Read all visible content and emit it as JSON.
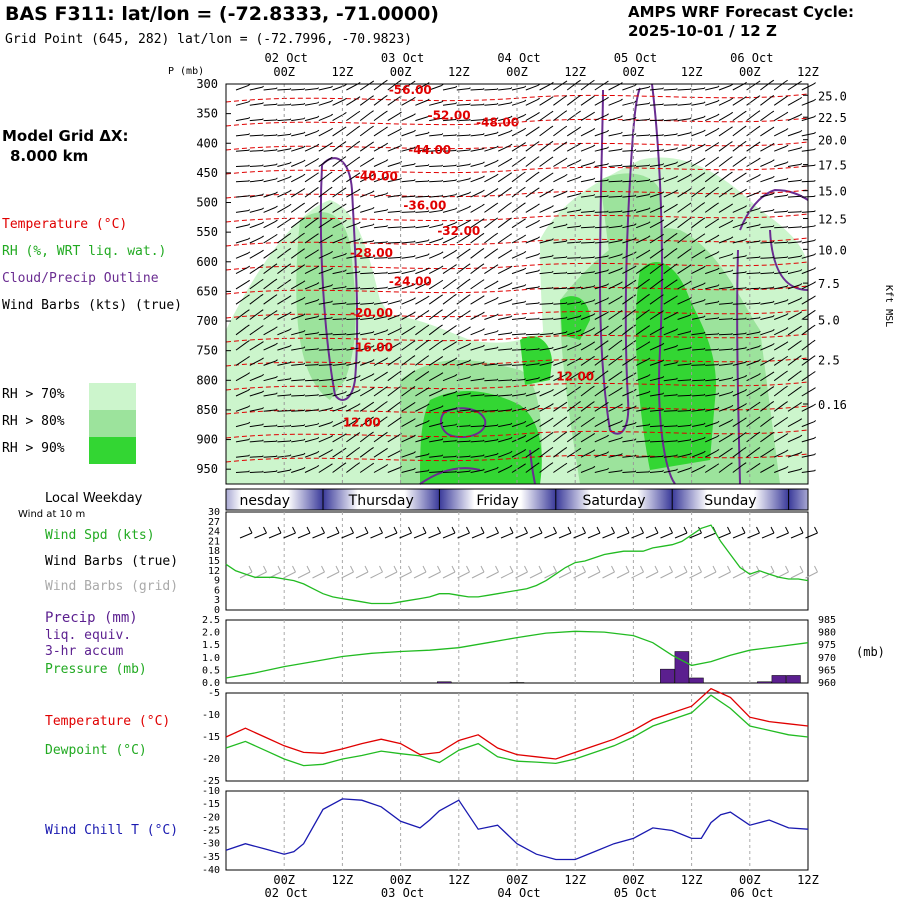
{
  "header": {
    "title": "BAS F311:  lat/lon = (-72.8333, -71.0000)",
    "grid_point": "Grid Point (645, 282) lat/lon = (-72.7996, -70.9823)",
    "forecast_line1": "AMPS WRF Forecast Cycle:",
    "forecast_line2": "2025-10-01 / 12  Z"
  },
  "left_panel": {
    "model_grid_label": "Model Grid ΔX:",
    "model_grid_value": "8.000 km",
    "legend_temperature": "Temperature (°C)",
    "legend_rh": "RH (%, WRT liq. wat.)",
    "legend_cloud": "Cloud/Precip Outline",
    "legend_wind": "Wind Barbs (kts) (true)",
    "rh70": "RH > 70%",
    "rh80": "RH > 80%",
    "rh90": "RH > 90%",
    "local_weekday": "Local Weekday",
    "wind_10m": "Wind at 10 m",
    "wind_spd": "Wind Spd (kts)",
    "wind_true": "Wind Barbs (true)",
    "wind_grid": "Wind Barbs (grid)",
    "precip1": "Precip (mm)",
    "precip2": "liq. equiv.",
    "precip3": "3-hr accum",
    "pressure": "Pressure (mb)",
    "temperature": "Temperature (°C)",
    "dewpoint": "Dewpoint (°C)",
    "windchill": "Wind Chill T (°C)"
  },
  "colors": {
    "rh70": "#ccf5cc",
    "rh80": "#9ce39c",
    "rh90": "#33d633",
    "temp": "#e00000",
    "cloud": "#6a2c91",
    "green": "#22bb22",
    "precip": "#5b1f8f",
    "chill": "#1a1ab0",
    "grey": "#aaaaaa"
  },
  "chart_data": [
    {
      "type": "heatmap",
      "title": "Vertical cross-section",
      "ylabel": "P (mb)",
      "y_ticks": [
        "300",
        "350",
        "400",
        "450",
        "500",
        "550",
        "600",
        "650",
        "700",
        "750",
        "800",
        "850",
        "900",
        "950"
      ],
      "right_label": "Kft MSL",
      "right_ticks": [
        "25.0",
        "22.5",
        "20.0",
        "17.5",
        "15.0",
        "12.5",
        "10.0",
        "7.5",
        "5.0",
        "2.5",
        "0.16"
      ],
      "right_tick_pressures": [
        319,
        356,
        394,
        436,
        480,
        527,
        579,
        636,
        697,
        765,
        840,
        928,
        979
      ],
      "top_dates": [
        "02 Oct",
        "03 Oct",
        "04 Oct",
        "05 Oct",
        "06 Oct"
      ],
      "x_hours": [
        "00Z",
        "12Z",
        "00Z",
        "12Z",
        "00Z",
        "12Z",
        "00Z",
        "12Z",
        "00Z",
        "12Z"
      ],
      "x_hour_offsets": [
        12,
        24,
        36,
        48,
        60,
        72,
        84,
        96,
        108,
        120
      ],
      "x_range": [
        0,
        120
      ],
      "temperature_labels": [
        {
          "v": "-56.00",
          "h": 38,
          "p": 317
        },
        {
          "v": "-52.00",
          "h": 46,
          "p": 360
        },
        {
          "v": "-48.00",
          "h": 56,
          "p": 372
        },
        {
          "v": "-44.00",
          "h": 42,
          "p": 418
        },
        {
          "v": "-40.00",
          "h": 31,
          "p": 463
        },
        {
          "v": "-36.00",
          "h": 41,
          "p": 512
        },
        {
          "v": "-32.00",
          "h": 48,
          "p": 555
        },
        {
          "v": "-28.00",
          "h": 30,
          "p": 592
        },
        {
          "v": "-24.00",
          "h": 38,
          "p": 640
        },
        {
          "v": "-20.00",
          "h": 30,
          "p": 693
        },
        {
          "v": "-16.00",
          "h": 30,
          "p": 751
        },
        {
          "v": "12.00",
          "h": 28,
          "p": 878
        },
        {
          "v": "12.00",
          "h": 72,
          "p": 800
        }
      ]
    },
    {
      "type": "bar",
      "title": "Local Weekday",
      "categories": [
        "nesday",
        "Thursday",
        "Friday",
        "Saturday",
        "Sunday",
        "I"
      ],
      "day_boundaries": [
        -4,
        20,
        44,
        68,
        92,
        116
      ]
    },
    {
      "type": "line",
      "title": "Wind Spd (kts)",
      "y_ticks": [
        30,
        27,
        24,
        21,
        18,
        15,
        12,
        9,
        6,
        3,
        0
      ],
      "ylim": [
        0,
        30
      ],
      "x": [
        0,
        2,
        4,
        6,
        8,
        10,
        12,
        14,
        16,
        18,
        20,
        22,
        24,
        26,
        28,
        30,
        32,
        34,
        36,
        38,
        40,
        42,
        44,
        46,
        48,
        50,
        52,
        54,
        56,
        58,
        60,
        62,
        64,
        66,
        68,
        70,
        72,
        74,
        76,
        78,
        80,
        82,
        84,
        86,
        88,
        90,
        92,
        94,
        96,
        98,
        100,
        102,
        104,
        106,
        108,
        110,
        112,
        114,
        116,
        118,
        120
      ],
      "values": [
        14,
        12,
        11,
        10,
        10,
        10,
        9.5,
        9,
        8,
        6.5,
        5,
        4,
        3.5,
        3,
        2.5,
        2,
        2,
        2,
        2.5,
        3,
        3.5,
        4,
        5,
        5,
        4.5,
        4,
        4,
        4.5,
        5,
        5.5,
        6,
        6.5,
        7.5,
        9,
        11,
        13,
        14.5,
        15,
        16,
        17,
        17.5,
        18,
        18,
        18,
        19,
        19.5,
        20,
        21,
        23,
        25,
        26,
        21,
        17,
        13,
        11,
        12,
        11,
        10,
        9.5,
        9.5,
        9
      ]
    },
    {
      "type": "bar",
      "title": "Precip (mm) / Pressure (mb)",
      "y_ticks": [
        "2.5",
        "2.0",
        "1.5",
        "1.0",
        "0.5",
        "0.0"
      ],
      "ylim": [
        0,
        2.5
      ],
      "right_ticks": [
        985,
        980,
        975,
        970,
        965,
        960
      ],
      "right_ylim": [
        960,
        985
      ],
      "right_label": "(mb)",
      "precip": [
        {
          "h": 45,
          "v": 0.05
        },
        {
          "h": 60,
          "v": 0.02
        },
        {
          "h": 91,
          "v": 0.55
        },
        {
          "h": 94,
          "v": 1.25
        },
        {
          "h": 97,
          "v": 0.2
        },
        {
          "h": 111,
          "v": 0.05
        },
        {
          "h": 114,
          "v": 0.3
        },
        {
          "h": 117,
          "v": 0.3
        }
      ],
      "pressure_x": [
        0,
        6,
        12,
        18,
        24,
        30,
        36,
        42,
        48,
        54,
        60,
        66,
        72,
        78,
        84,
        88,
        92,
        96,
        100,
        104,
        108,
        114,
        120
      ],
      "pressure": [
        962,
        964,
        966.5,
        968.5,
        970.5,
        971.8,
        972.5,
        973,
        974,
        976,
        978,
        979.8,
        980.5,
        980.2,
        978.8,
        976,
        971,
        967,
        968.5,
        971,
        973,
        974.5,
        976
      ]
    },
    {
      "type": "line",
      "title": "Temperature / Dewpoint (°C)",
      "y_ticks": [
        -5,
        -10,
        -15,
        -20,
        -25
      ],
      "ylim": [
        -25,
        -5
      ],
      "x": [
        0,
        4,
        8,
        12,
        16,
        20,
        24,
        28,
        32,
        36,
        40,
        44,
        48,
        52,
        56,
        60,
        64,
        68,
        72,
        76,
        80,
        84,
        88,
        92,
        96,
        100,
        104,
        108,
        112,
        116,
        120
      ],
      "series": [
        {
          "name": "Temperature",
          "values": [
            -15,
            -13,
            -15,
            -17,
            -18.5,
            -18.7,
            -17.7,
            -16.5,
            -15.5,
            -16.5,
            -19,
            -18.5,
            -15.8,
            -14.5,
            -17.5,
            -19,
            -19.5,
            -20,
            -18.5,
            -17,
            -15.5,
            -13.5,
            -11,
            -9.5,
            -8,
            -4,
            -6,
            -10.5,
            -11.5,
            -12,
            -12.5
          ]
        },
        {
          "name": "Dewpoint",
          "values": [
            -17.5,
            -16,
            -18,
            -20,
            -21.5,
            -21.2,
            -20,
            -19.2,
            -18.2,
            -18.8,
            -19.3,
            -20.8,
            -18,
            -16.5,
            -19.5,
            -20.5,
            -20.7,
            -21,
            -20,
            -18.5,
            -17,
            -15,
            -12.5,
            -11,
            -9.5,
            -5.5,
            -8.5,
            -12.5,
            -13.5,
            -14.5,
            -15
          ]
        }
      ]
    },
    {
      "type": "line",
      "title": "Wind Chill T (°C)",
      "y_ticks": [
        -10,
        -15,
        -20,
        -25,
        -30,
        -35,
        -40
      ],
      "ylim": [
        -40,
        -10
      ],
      "x": [
        0,
        4,
        8,
        12,
        14,
        16,
        20,
        24,
        28,
        32,
        36,
        40,
        42,
        44,
        48,
        50,
        52,
        56,
        60,
        64,
        68,
        72,
        76,
        80,
        84,
        88,
        92,
        96,
        98,
        100,
        102,
        104,
        108,
        112,
        116,
        120
      ],
      "values": [
        -32.5,
        -30,
        -32,
        -34,
        -33,
        -30,
        -17,
        -13,
        -13.5,
        -16,
        -21.5,
        -24,
        -21,
        -17.5,
        -13.5,
        -19,
        -24.5,
        -23,
        -30,
        -34,
        -36,
        -36,
        -33,
        -30,
        -28,
        -24,
        -25,
        -28,
        -28,
        -22,
        -19,
        -18,
        -23,
        -21,
        -24,
        -24.5
      ]
    }
  ]
}
